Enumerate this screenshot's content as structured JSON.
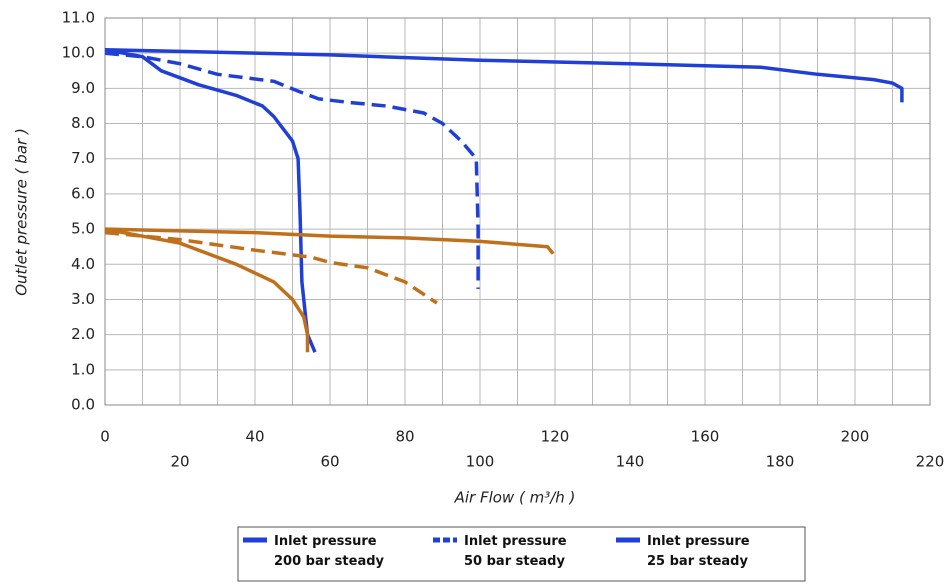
{
  "chart_data": {
    "type": "line",
    "xlabel": "Air Flow ( m³/h )",
    "ylabel": "Outlet pressure ( bar )",
    "xlim": [
      0,
      220
    ],
    "xticks": [
      0,
      20,
      40,
      60,
      80,
      100,
      120,
      140,
      160,
      180,
      200,
      220
    ],
    "ylim": [
      0,
      11
    ],
    "yticks": [
      {
        "value": 0,
        "label": "0.0"
      },
      {
        "value": 1,
        "label": "1.0"
      },
      {
        "value": 2,
        "label": "2.0"
      },
      {
        "value": 3,
        "label": "3.0"
      },
      {
        "value": 4,
        "label": "4.0"
      },
      {
        "value": 5,
        "label": "5.0"
      },
      {
        "value": 6,
        "label": "6.0"
      },
      {
        "value": 7,
        "label": "7.0"
      },
      {
        "value": 8,
        "label": "8.0"
      },
      {
        "value": 9,
        "label": "9.0"
      },
      {
        "value": 10,
        "label": "10.0"
      },
      {
        "value": 11,
        "label": "11.0"
      }
    ],
    "grid": true,
    "legend": "bottom",
    "series": [
      {
        "name": "Inlet pressure 200 bar steady",
        "color": "#1f3fd6",
        "dash": "solid",
        "x": [
          0,
          20,
          60,
          100,
          140,
          175,
          190,
          205,
          210,
          212.5,
          212.5
        ],
        "values": [
          10.1,
          10.05,
          9.95,
          9.8,
          9.7,
          9.6,
          9.4,
          9.25,
          9.15,
          9.0,
          8.6
        ]
      },
      {
        "name": "Inlet pressure 50 bar steady",
        "color": "#1f3fd6",
        "dash": "dashed",
        "x": [
          0,
          10,
          20,
          30,
          45,
          52,
          57,
          65,
          75,
          85,
          90,
          95,
          99,
          99.5,
          99.5
        ],
        "values": [
          10.0,
          9.9,
          9.7,
          9.4,
          9.2,
          8.9,
          8.7,
          8.6,
          8.5,
          8.3,
          8.0,
          7.5,
          7.0,
          5.0,
          3.3
        ]
      },
      {
        "name": "Inlet pressure 25 bar steady",
        "color": "#1f3fd6",
        "dash": "solid",
        "x": [
          0,
          10,
          15,
          25,
          35,
          42,
          45,
          50,
          51.5,
          52,
          52.5,
          54,
          56
        ],
        "values": [
          10.1,
          9.9,
          9.5,
          9.1,
          8.8,
          8.5,
          8.2,
          7.5,
          7.0,
          5.5,
          3.5,
          2.0,
          1.5
        ]
      },
      {
        "color": "#c0701a",
        "dash": "solid",
        "x": [
          0,
          40,
          60,
          80,
          100,
          118,
          119.5
        ],
        "values": [
          5.0,
          4.9,
          4.8,
          4.75,
          4.65,
          4.5,
          4.3
        ]
      },
      {
        "color": "#c0701a",
        "dash": "dashed",
        "x": [
          0,
          20,
          40,
          55,
          60,
          70,
          80,
          88.5
        ],
        "values": [
          4.9,
          4.7,
          4.4,
          4.2,
          4.05,
          3.9,
          3.5,
          2.9
        ]
      },
      {
        "color": "#c0701a",
        "dash": "solid",
        "x": [
          0,
          20,
          35,
          45,
          50,
          53,
          54,
          54
        ],
        "values": [
          5.0,
          4.6,
          4.0,
          3.5,
          3.0,
          2.5,
          2.0,
          1.5
        ]
      }
    ]
  }
}
